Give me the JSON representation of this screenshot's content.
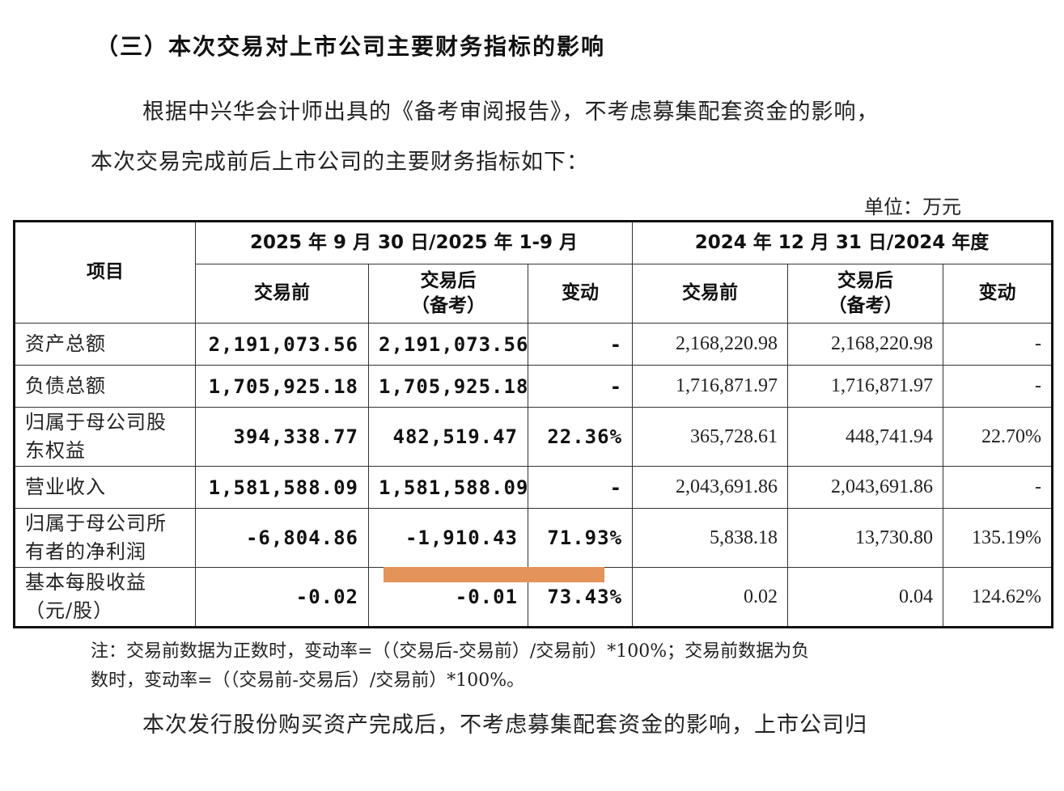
{
  "heading": "（三）本次交易对上市公司主要财务指标的影响",
  "intro": {
    "line1": "根据中兴华会计师出具的《备考审阅报告》，不考虑募集配套资金的影响，",
    "line2": "本次交易完成前后上市公司的主要财务指标如下："
  },
  "unit": "单位：万元",
  "table": {
    "item_header": "项目",
    "period_a": "2025 年 9 月 30 日/2025 年 1-9 月",
    "period_b": "2024 年 12 月 31 日/2024 年度",
    "col_before": "交易前",
    "col_after_l1": "交易后",
    "col_after_l2": "（备考）",
    "col_change": "变动",
    "rows": [
      {
        "label_l1": "资产总额",
        "label_l2": "",
        "a_before": "2,191,073.56",
        "a_after": "2,191,073.56",
        "a_change": "-",
        "b_before": "2,168,220.98",
        "b_after": "2,168,220.98",
        "b_change": "-"
      },
      {
        "label_l1": "负债总额",
        "label_l2": "",
        "a_before": "1,705,925.18",
        "a_after": "1,705,925.18",
        "a_change": "-",
        "b_before": "1,716,871.97",
        "b_after": "1,716,871.97",
        "b_change": "-"
      },
      {
        "label_l1": "归属于母公司股",
        "label_l2": "东权益",
        "a_before": "394,338.77",
        "a_after": "482,519.47",
        "a_change": "22.36%",
        "b_before": "365,728.61",
        "b_after": "448,741.94",
        "b_change": "22.70%"
      },
      {
        "label_l1": "营业收入",
        "label_l2": "",
        "a_before": "1,581,588.09",
        "a_after": "1,581,588.09",
        "a_change": "-",
        "b_before": "2,043,691.86",
        "b_after": "2,043,691.86",
        "b_change": "-"
      },
      {
        "label_l1": "归属于母公司所",
        "label_l2": "有者的净利润",
        "a_before": "-6,804.86",
        "a_after": "-1,910.43",
        "a_change": "71.93%",
        "b_before": "5,838.18",
        "b_after": "13,730.80",
        "b_change": "135.19%"
      },
      {
        "label_l1": "基本每股收益",
        "label_l2": "（元/股）",
        "a_before": "-0.02",
        "a_after": "-0.01",
        "a_change": "73.43%",
        "b_before": "0.02",
        "b_after": "0.04",
        "b_change": "124.62%"
      }
    ]
  },
  "note": {
    "line1": "注：交易前数据为正数时，变动率=（（交易后-交易前）/交易前）*100%；交易前数据为负",
    "line2": "数时，变动率=（（交易前-交易后）/交易前）*100%。"
  },
  "closing": "本次发行股份购买资产完成后，不考虑募集配套资金的影响，上市公司归",
  "colors": {
    "highlight": "#e4935a"
  }
}
